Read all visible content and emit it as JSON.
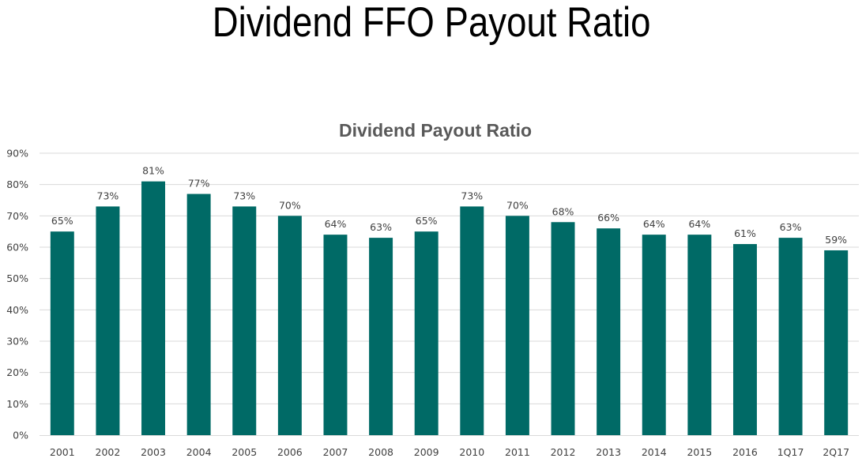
{
  "page": {
    "title": "Dividend FFO Payout Ratio"
  },
  "chart_data": {
    "type": "bar",
    "title": "Dividend Payout Ratio",
    "xlabel": "",
    "ylabel": "",
    "categories": [
      "2001",
      "2002",
      "2003",
      "2004",
      "2005",
      "2006",
      "2007",
      "2008",
      "2009",
      "2010",
      "2011",
      "2012",
      "2013",
      "2014",
      "2015",
      "2016",
      "1Q17",
      "2Q17"
    ],
    "values": [
      65,
      73,
      81,
      77,
      73,
      70,
      64,
      63,
      65,
      73,
      70,
      68,
      66,
      64,
      64,
      61,
      63,
      59
    ],
    "data_labels": [
      "65%",
      "73%",
      "81%",
      "77%",
      "73%",
      "70%",
      "64%",
      "63%",
      "65%",
      "73%",
      "70%",
      "68%",
      "66%",
      "64%",
      "64%",
      "61%",
      "63%",
      "59%"
    ],
    "ylim": [
      0,
      90
    ],
    "y_ticks": [
      0,
      10,
      20,
      30,
      40,
      50,
      60,
      70,
      80,
      90
    ],
    "y_tick_labels": [
      "0%",
      "10%",
      "20%",
      "30%",
      "40%",
      "50%",
      "60%",
      "70%",
      "80%",
      "90%"
    ],
    "grid": true,
    "legend": "none",
    "bar_color": "#006a66",
    "grid_color": "#d9d9d9"
  }
}
